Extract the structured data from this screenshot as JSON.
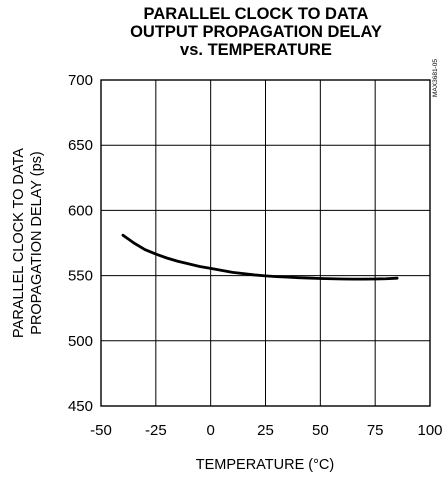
{
  "chart_data": {
    "type": "line",
    "title_lines": [
      "PARALLEL CLOCK TO DATA",
      "OUTPUT PROPAGATION DELAY",
      "vs. TEMPERATURE"
    ],
    "xlabel": "TEMPERATURE (°C)",
    "ylabel_lines": [
      "PARALLEL CLOCK TO DATA",
      "PROPAGATION DELAY (ps)"
    ],
    "xlim": [
      -50,
      100
    ],
    "ylim": [
      450,
      700
    ],
    "xticks": [
      -50,
      -25,
      0,
      25,
      50,
      75,
      100
    ],
    "yticks": [
      450,
      500,
      550,
      600,
      650,
      700
    ],
    "grid": true,
    "side_label": "MAX3681-05",
    "series": [
      {
        "x": [
          -40,
          -35,
          -30,
          -25,
          -20,
          -15,
          -10,
          -5,
          0,
          5,
          10,
          15,
          20,
          25,
          30,
          35,
          40,
          45,
          50,
          55,
          60,
          65,
          70,
          75,
          80,
          85
        ],
        "y": [
          581,
          575,
          570,
          566.5,
          563.5,
          561,
          559,
          557,
          555.5,
          554,
          552.5,
          551.5,
          550.5,
          549.8,
          549.2,
          548.8,
          548.4,
          548.1,
          547.8,
          547.6,
          547.4,
          547.3,
          547.3,
          547.4,
          547.6,
          548
        ]
      }
    ]
  }
}
